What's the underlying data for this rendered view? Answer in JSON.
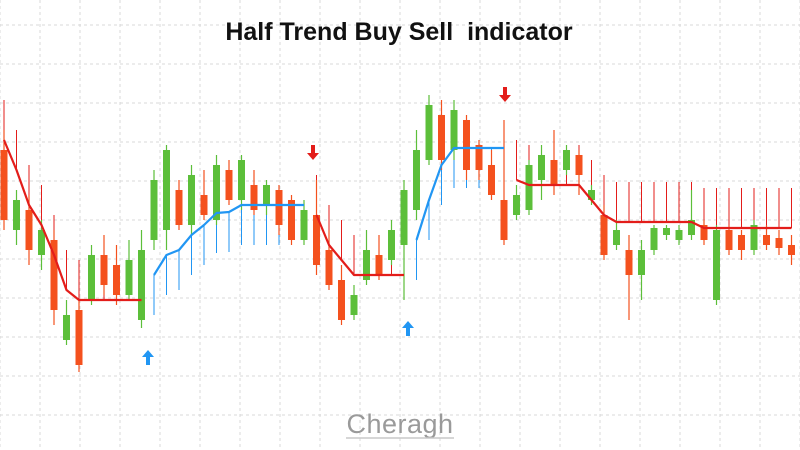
{
  "chart_data": {
    "type": "candlestick",
    "title": "Half Trend Buy Sell  indicator",
    "watermark": "Cheragh",
    "up_color": "#5cbf3a",
    "down_color": "#f4511e",
    "grid": true,
    "open": [
      300,
      220,
      240,
      195,
      210,
      110,
      140,
      150,
      195,
      185,
      155,
      130,
      210,
      220,
      260,
      225,
      255,
      230,
      280,
      250,
      265,
      245,
      260,
      250,
      210,
      235,
      200,
      170,
      135,
      170,
      195,
      190,
      205,
      240,
      290,
      335,
      300,
      330,
      305,
      285,
      250,
      235,
      240,
      270,
      290,
      280,
      295,
      250,
      235,
      205,
      200,
      175,
      200,
      215,
      210,
      215,
      225,
      150,
      220,
      215,
      200,
      215,
      212,
      205
    ],
    "high": [
      320,
      260,
      255,
      230,
      220,
      150,
      150,
      205,
      215,
      205,
      210,
      220,
      280,
      305,
      270,
      285,
      280,
      295,
      290,
      295,
      280,
      270,
      265,
      255,
      250,
      270,
      220,
      185,
      165,
      220,
      215,
      230,
      270,
      320,
      355,
      350,
      350,
      335,
      310,
      300,
      330,
      265,
      290,
      305,
      320,
      305,
      300,
      265,
      245,
      230,
      215,
      210,
      225,
      225,
      225,
      260,
      230,
      225,
      225,
      220,
      230,
      225,
      220,
      215
    ],
    "low": [
      220,
      205,
      185,
      180,
      125,
      105,
      78,
      145,
      155,
      145,
      150,
      122,
      200,
      200,
      220,
      215,
      230,
      225,
      245,
      240,
      235,
      235,
      215,
      205,
      205,
      175,
      160,
      125,
      130,
      165,
      170,
      185,
      150,
      230,
      285,
      280,
      290,
      270,
      270,
      250,
      205,
      230,
      235,
      250,
      255,
      275,
      255,
      245,
      190,
      200,
      130,
      150,
      195,
      210,
      205,
      210,
      205,
      145,
      195,
      190,
      195,
      200,
      195,
      185
    ],
    "close": [
      230,
      250,
      200,
      220,
      140,
      135,
      85,
      195,
      165,
      155,
      190,
      200,
      270,
      300,
      225,
      275,
      235,
      285,
      250,
      290,
      240,
      265,
      225,
      210,
      240,
      185,
      165,
      130,
      155,
      200,
      175,
      220,
      260,
      300,
      345,
      290,
      340,
      280,
      280,
      255,
      210,
      255,
      285,
      295,
      265,
      300,
      275,
      260,
      195,
      220,
      175,
      200,
      222,
      222,
      220,
      230,
      210,
      220,
      200,
      200,
      225,
      205,
      202,
      195
    ],
    "series": [
      {
        "color": "#e31d1a",
        "direction": "down",
        "values": [
          310,
          280,
          245,
          225,
          195,
          160,
          150,
          150,
          150,
          150,
          150,
          150,
          null,
          null,
          null,
          null,
          null,
          null,
          null,
          null,
          null,
          null,
          null,
          null,
          null,
          235,
          205,
          190,
          175,
          175,
          175,
          175,
          175,
          null,
          null,
          null,
          null,
          null,
          null,
          null,
          null,
          270,
          265,
          265,
          265,
          265,
          265,
          250,
          235,
          228,
          228,
          228,
          228,
          228,
          228,
          228,
          222,
          222,
          222,
          222,
          222,
          222,
          222,
          222
        ]
      },
      {
        "color": "#2196f3",
        "direction": "up",
        "values": [
          null,
          null,
          null,
          null,
          null,
          null,
          null,
          null,
          null,
          null,
          null,
          null,
          175,
          195,
          200,
          215,
          225,
          237,
          238,
          245,
          245,
          245,
          245,
          245,
          245,
          null,
          null,
          null,
          null,
          null,
          null,
          null,
          null,
          210,
          250,
          285,
          302,
          302,
          302,
          302,
          302,
          null,
          null,
          null,
          null,
          null,
          null,
          null,
          null,
          null,
          null,
          null,
          null,
          null,
          null,
          null,
          null,
          null,
          null,
          null,
          null,
          null,
          null,
          null
        ]
      }
    ]
  }
}
